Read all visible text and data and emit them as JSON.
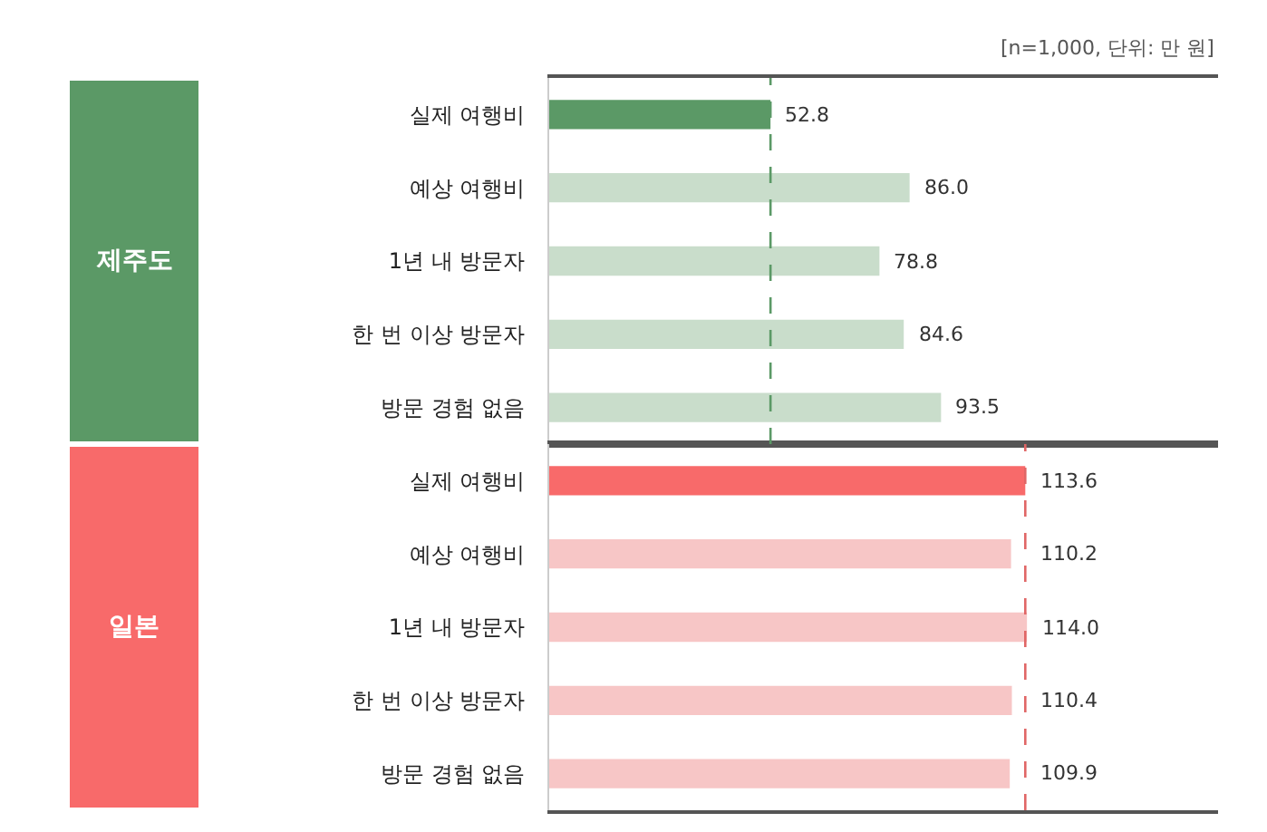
{
  "chart_data": [
    {
      "type": "bar",
      "orientation": "horizontal",
      "ylabel": "제주도",
      "categories": [
        "실제 여행비",
        "예상 여행비",
        "1년 내 방문자",
        "한 번 이상 방문자",
        "방문 경험 없음"
      ],
      "values": [
        52.8,
        86.0,
        78.8,
        84.6,
        93.5
      ],
      "value_labels": [
        "52.8",
        "86.0",
        "78.8",
        "84.6",
        "93.5"
      ],
      "colors": [
        "#5b9966",
        "#c9ddcb",
        "#c9ddcb",
        "#c9ddcb",
        "#c9ddcb"
      ],
      "ref_lines": [
        {
          "axis": "x",
          "value": 52.8,
          "color": "#5b9966",
          "line_style": "dashed"
        }
      ],
      "annotations": [
        "[n=1,000, 단위: 만 원]"
      ],
      "tick_labels": "y"
    },
    {
      "type": "bar",
      "orientation": "horizontal",
      "ylabel": "일본",
      "categories": [
        "실제 여행비",
        "예상 여행비",
        "1년 내 방문자",
        "한 번 이상 방문자",
        "방문 경험 없음"
      ],
      "values": [
        113.6,
        110.2,
        114.0,
        110.4,
        109.9
      ],
      "value_labels": [
        "113.6",
        "110.2",
        "114.0",
        "110.4",
        "109.9"
      ],
      "colors": [
        "#f86a6a",
        "#f7c6c6",
        "#f7c6c6",
        "#f7c6c6",
        "#f7c6c6"
      ],
      "ref_lines": [
        {
          "axis": "x",
          "value": 113.6,
          "color": "#e06666",
          "line_style": "dashed"
        }
      ],
      "tick_labels": "y"
    }
  ]
}
